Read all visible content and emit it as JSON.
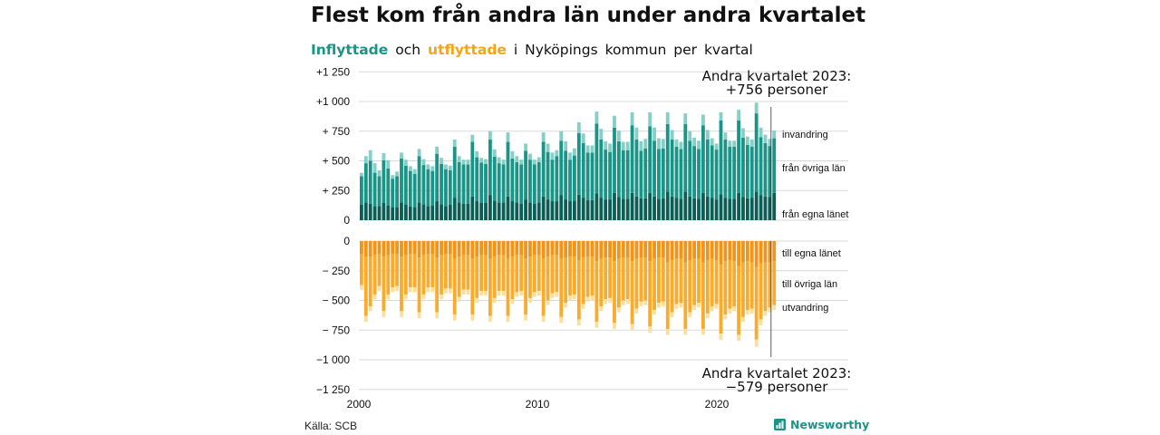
{
  "title": "Flest kom från andra län under andra kvartalet",
  "subtitle": {
    "in_word": "Inflyttade",
    "and_word": "och",
    "out_word": "utflyttade",
    "rest": "i Nyköpings kommun per kvartal"
  },
  "source": "Källa: SCB",
  "brand": "Newsworthy",
  "chart_data": {
    "type": "bar",
    "stacked": true,
    "x_ticks": [
      "2000",
      "2010",
      "2020"
    ],
    "top": {
      "y_ticks": [
        "+1 250",
        "+1 000",
        "+ 750",
        "+ 500",
        "+ 250",
        "0"
      ],
      "ylim": [
        0,
        1250
      ],
      "annotation": [
        "Andra kvartalet 2023:",
        "+756 personer"
      ],
      "series": [
        {
          "name": "från egna länet",
          "color": "#0b5e55"
        },
        {
          "name": "från övriga län",
          "color": "#1a9487"
        },
        {
          "name": "invandring",
          "color": "#86cfc6"
        }
      ]
    },
    "bottom": {
      "y_ticks": [
        "0",
        "− 250",
        "− 500",
        "− 750",
        "−1 000",
        "−1 250"
      ],
      "ylim": [
        -1250,
        0
      ],
      "annotation": [
        "Andra kvartalet 2023:",
        "−579 personer"
      ],
      "series": [
        {
          "name": "till egna länet",
          "color": "#f0941a"
        },
        {
          "name": "till övriga län",
          "color": "#f9ab2e"
        },
        {
          "name": "utvandring",
          "color": "#fbdf9a"
        }
      ]
    },
    "quarters": [
      "2000 Q1",
      "2000 Q2",
      "2000 Q3",
      "2000 Q4",
      "2001 Q1",
      "2001 Q2",
      "2001 Q3",
      "2001 Q4",
      "2002 Q1",
      "2002 Q2",
      "2002 Q3",
      "2002 Q4",
      "2003 Q1",
      "2003 Q2",
      "2003 Q3",
      "2003 Q4",
      "2004 Q1",
      "2004 Q2",
      "2004 Q3",
      "2004 Q4",
      "2005 Q1",
      "2005 Q2",
      "2005 Q3",
      "2005 Q4",
      "2006 Q1",
      "2006 Q2",
      "2006 Q3",
      "2006 Q4",
      "2007 Q1",
      "2007 Q2",
      "2007 Q3",
      "2007 Q4",
      "2008 Q1",
      "2008 Q2",
      "2008 Q3",
      "2008 Q4",
      "2009 Q1",
      "2009 Q2",
      "2009 Q3",
      "2009 Q4",
      "2010 Q1",
      "2010 Q2",
      "2010 Q3",
      "2010 Q4",
      "2011 Q1",
      "2011 Q2",
      "2011 Q3",
      "2011 Q4",
      "2012 Q1",
      "2012 Q2",
      "2012 Q3",
      "2012 Q4",
      "2013 Q1",
      "2013 Q2",
      "2013 Q3",
      "2013 Q4",
      "2014 Q1",
      "2014 Q2",
      "2014 Q3",
      "2014 Q4",
      "2015 Q1",
      "2015 Q2",
      "2015 Q3",
      "2015 Q4",
      "2016 Q1",
      "2016 Q2",
      "2016 Q3",
      "2016 Q4",
      "2017 Q1",
      "2017 Q2",
      "2017 Q3",
      "2017 Q4",
      "2018 Q1",
      "2018 Q2",
      "2018 Q3",
      "2018 Q4",
      "2019 Q1",
      "2019 Q2",
      "2019 Q3",
      "2019 Q4",
      "2020 Q1",
      "2020 Q2",
      "2020 Q3",
      "2020 Q4",
      "2021 Q1",
      "2021 Q2",
      "2021 Q3",
      "2021 Q4",
      "2022 Q1",
      "2022 Q2",
      "2022 Q3",
      "2022 Q4",
      "2023 Q1",
      "2023 Q2"
    ],
    "in_egna": [
      130,
      150,
      140,
      120,
      120,
      145,
      125,
      110,
      110,
      150,
      130,
      115,
      110,
      150,
      135,
      120,
      125,
      160,
      135,
      120,
      130,
      190,
      150,
      140,
      140,
      200,
      160,
      145,
      145,
      210,
      165,
      150,
      150,
      200,
      160,
      150,
      140,
      175,
      150,
      140,
      150,
      200,
      175,
      160,
      160,
      210,
      175,
      160,
      165,
      215,
      190,
      170,
      170,
      225,
      190,
      175,
      175,
      230,
      195,
      180,
      180,
      230,
      200,
      185,
      185,
      230,
      200,
      180,
      185,
      240,
      200,
      190,
      180,
      240,
      200,
      185,
      180,
      230,
      200,
      190,
      175,
      220,
      190,
      180,
      180,
      230,
      195,
      185,
      190,
      240,
      210,
      200,
      195,
      230
    ],
    "in_ovriga": [
      240,
      330,
      360,
      280,
      250,
      360,
      310,
      240,
      260,
      370,
      330,
      300,
      280,
      390,
      330,
      310,
      290,
      400,
      340,
      310,
      290,
      430,
      340,
      330,
      330,
      460,
      370,
      340,
      330,
      470,
      370,
      330,
      320,
      460,
      360,
      340,
      330,
      410,
      360,
      330,
      340,
      460,
      400,
      350,
      380,
      460,
      410,
      350,
      380,
      520,
      460,
      400,
      400,
      590,
      490,
      420,
      400,
      550,
      470,
      410,
      410,
      570,
      480,
      400,
      420,
      560,
      470,
      420,
      420,
      570,
      480,
      430,
      420,
      570,
      470,
      440,
      420,
      570,
      480,
      440,
      420,
      620,
      490,
      440,
      440,
      610,
      500,
      450,
      430,
      660,
      490,
      450,
      430,
      460
    ],
    "in_invandring": [
      30,
      60,
      90,
      80,
      50,
      60,
      70,
      30,
      40,
      50,
      50,
      40,
      40,
      60,
      50,
      40,
      40,
      60,
      50,
      40,
      40,
      60,
      50,
      40,
      40,
      60,
      50,
      40,
      40,
      70,
      60,
      50,
      40,
      80,
      60,
      50,
      40,
      60,
      50,
      40,
      40,
      80,
      70,
      60,
      50,
      80,
      80,
      60,
      60,
      90,
      80,
      60,
      60,
      100,
      90,
      70,
      70,
      100,
      90,
      70,
      70,
      110,
      100,
      80,
      80,
      120,
      110,
      90,
      80,
      100,
      80,
      60,
      60,
      90,
      80,
      70,
      70,
      90,
      80,
      60,
      50,
      70,
      60,
      50,
      50,
      90,
      80,
      70,
      60,
      90,
      80,
      70,
      60,
      66
    ],
    "out_egna": [
      110,
      130,
      130,
      120,
      110,
      130,
      120,
      110,
      110,
      130,
      120,
      110,
      110,
      140,
      120,
      110,
      110,
      140,
      120,
      110,
      110,
      150,
      130,
      120,
      120,
      150,
      130,
      120,
      120,
      150,
      130,
      120,
      120,
      150,
      130,
      120,
      120,
      150,
      130,
      120,
      120,
      150,
      130,
      120,
      120,
      150,
      140,
      130,
      130,
      160,
      140,
      130,
      130,
      170,
      150,
      140,
      140,
      170,
      150,
      140,
      140,
      170,
      150,
      140,
      140,
      170,
      150,
      140,
      140,
      180,
      160,
      150,
      150,
      180,
      160,
      150,
      150,
      180,
      160,
      150,
      160,
      200,
      170,
      160,
      170,
      210,
      180,
      170,
      180,
      220,
      190,
      180,
      180,
      170
    ],
    "out_ovriga": [
      260,
      500,
      420,
      330,
      270,
      460,
      330,
      280,
      270,
      460,
      330,
      280,
      280,
      460,
      330,
      280,
      280,
      460,
      330,
      290,
      290,
      470,
      340,
      290,
      290,
      470,
      350,
      300,
      300,
      480,
      350,
      300,
      300,
      480,
      360,
      310,
      300,
      470,
      350,
      310,
      300,
      480,
      370,
      320,
      310,
      490,
      380,
      330,
      320,
      500,
      390,
      340,
      330,
      510,
      400,
      350,
      340,
      520,
      410,
      360,
      350,
      530,
      420,
      370,
      360,
      550,
      430,
      380,
      370,
      560,
      440,
      380,
      370,
      560,
      440,
      390,
      370,
      560,
      450,
      400,
      370,
      580,
      450,
      410,
      380,
      580,
      460,
      410,
      390,
      610,
      470,
      410,
      380,
      370
    ],
    "out_utvandring": [
      40,
      50,
      40,
      40,
      40,
      50,
      40,
      40,
      40,
      50,
      40,
      40,
      40,
      50,
      40,
      40,
      40,
      50,
      40,
      40,
      40,
      50,
      40,
      40,
      40,
      50,
      40,
      40,
      40,
      50,
      40,
      40,
      40,
      50,
      40,
      40,
      40,
      50,
      40,
      40,
      40,
      50,
      40,
      40,
      40,
      50,
      40,
      40,
      40,
      50,
      40,
      40,
      40,
      50,
      40,
      40,
      40,
      50,
      40,
      40,
      40,
      50,
      40,
      40,
      40,
      50,
      40,
      40,
      40,
      50,
      40,
      40,
      40,
      50,
      40,
      40,
      40,
      50,
      40,
      40,
      40,
      50,
      40,
      40,
      40,
      50,
      40,
      40,
      40,
      60,
      50,
      40,
      40,
      39
    ]
  }
}
